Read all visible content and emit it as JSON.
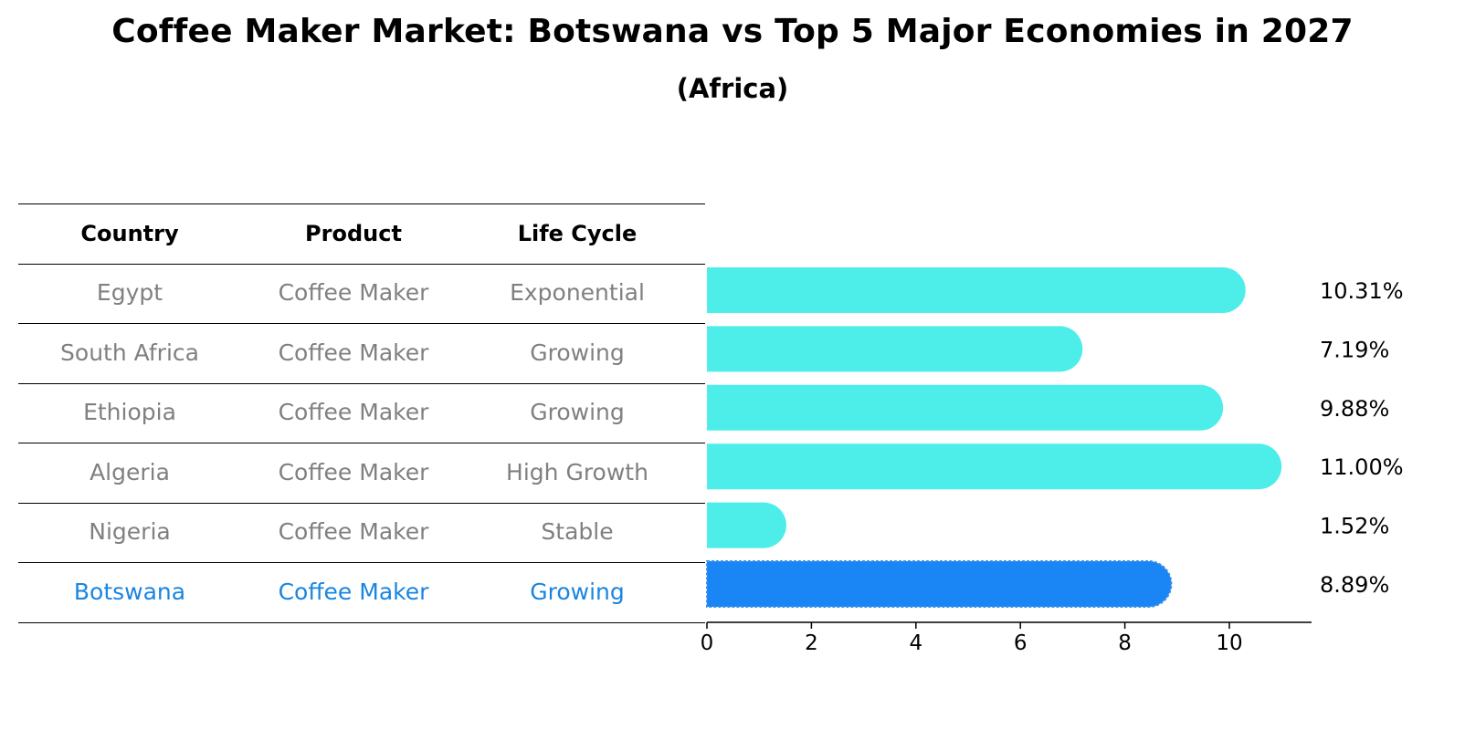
{
  "title": "Coffee Maker Market: Botswana vs Top 5 Major Economies in 2027",
  "subtitle": "(Africa)",
  "table": {
    "headers": [
      "Country",
      "Product",
      "Life Cycle"
    ],
    "rows": [
      {
        "country": "Egypt",
        "product": "Coffee Maker",
        "life_cycle": "Exponential",
        "highlight": false
      },
      {
        "country": "South Africa",
        "product": "Coffee Maker",
        "life_cycle": "Growing",
        "highlight": false
      },
      {
        "country": "Ethiopia",
        "product": "Coffee Maker",
        "life_cycle": "Growing",
        "highlight": false
      },
      {
        "country": "Algeria",
        "product": "Coffee Maker",
        "life_cycle": "High Growth",
        "highlight": false
      },
      {
        "country": "Nigeria",
        "product": "Coffee Maker",
        "life_cycle": "Stable",
        "highlight": false
      },
      {
        "country": "Botswana",
        "product": "Coffee Maker",
        "life_cycle": "Growing",
        "highlight": true
      }
    ]
  },
  "chart_data": {
    "type": "bar",
    "orientation": "horizontal",
    "categories": [
      "Egypt",
      "South Africa",
      "Ethiopia",
      "Algeria",
      "Nigeria",
      "Botswana"
    ],
    "values": [
      10.31,
      7.19,
      9.88,
      11.0,
      1.52,
      8.89
    ],
    "value_labels": [
      "10.31%",
      "7.19%",
      "9.88%",
      "11.00%",
      "1.52%",
      "8.89%"
    ],
    "xlim": [
      0,
      11.5
    ],
    "xticks": [
      0,
      2,
      4,
      6,
      8,
      10
    ],
    "grid": false,
    "colors": {
      "default": "#4deeea",
      "highlight": "#1a85f5"
    },
    "highlight_index": 5
  }
}
